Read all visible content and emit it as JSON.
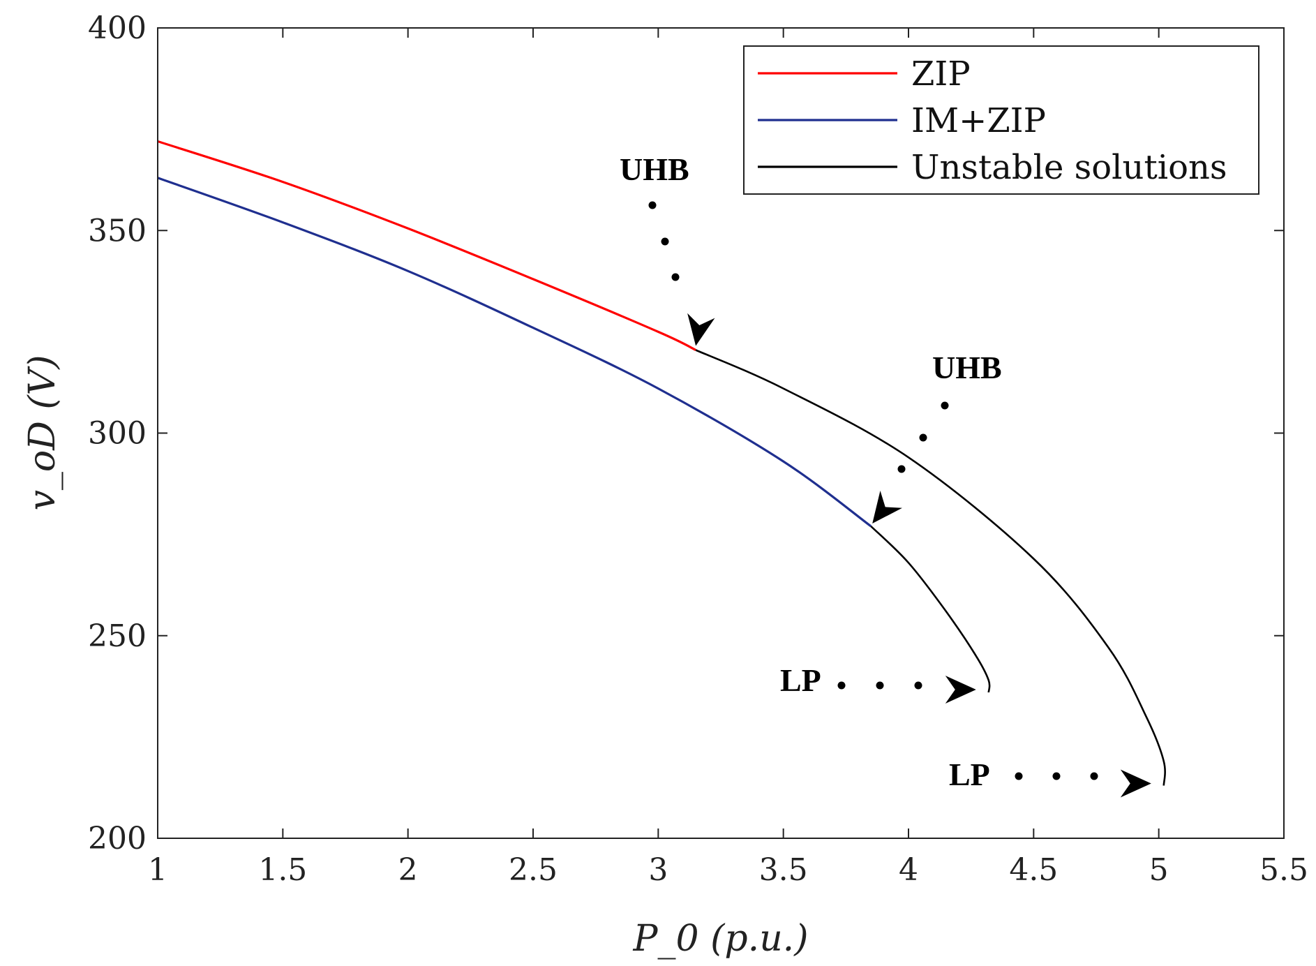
{
  "chart_data": {
    "type": "line",
    "title": "",
    "xlabel": "P_0 (p.u.)",
    "ylabel": "v_oD (V)",
    "xlim": [
      1,
      5.5
    ],
    "ylim": [
      200,
      400
    ],
    "x_ticks": [
      "1",
      "1.5",
      "2",
      "2.5",
      "3",
      "3.5",
      "4",
      "4.5",
      "5",
      "5.5"
    ],
    "y_ticks": [
      "200",
      "250",
      "300",
      "350",
      "400"
    ],
    "grid": false,
    "legend_position": "top-right",
    "series": [
      {
        "name": "ZIP",
        "color": "#ff0000",
        "x": [
          1.0,
          1.5,
          2.0,
          2.5,
          3.0,
          3.15
        ],
        "y": [
          372,
          362,
          350.5,
          338,
          325,
          320.5
        ]
      },
      {
        "name": "IM+ZIP",
        "color": "#1f2f8f",
        "x": [
          1.0,
          1.5,
          2.0,
          2.5,
          3.0,
          3.5,
          3.85
        ],
        "y": [
          363,
          352,
          340,
          326,
          311,
          293,
          277
        ]
      },
      {
        "name": "Unstable solutions",
        "color": "#000000",
        "segments": [
          {
            "x": [
              3.15,
              3.5,
              4.0,
              4.5,
              4.8,
              4.95,
              5.02,
              5.02
            ],
            "y": [
              320.5,
              311,
              294,
              269,
              247,
              230,
              219,
              213
            ]
          },
          {
            "x": [
              3.85,
              4.0,
              4.15,
              4.27,
              4.32,
              4.32
            ],
            "y": [
              277,
              268,
              256,
              245,
              239,
              236
            ]
          }
        ]
      }
    ],
    "annotations": [
      {
        "label": "UHB",
        "points_to": {
          "x": 3.15,
          "y": 320.5
        }
      },
      {
        "label": "UHB",
        "points_to": {
          "x": 3.85,
          "y": 277
        }
      },
      {
        "label": "LP",
        "points_to": {
          "x": 4.32,
          "y": 236
        }
      },
      {
        "label": "LP",
        "points_to": {
          "x": 5.02,
          "y": 213
        }
      }
    ]
  }
}
